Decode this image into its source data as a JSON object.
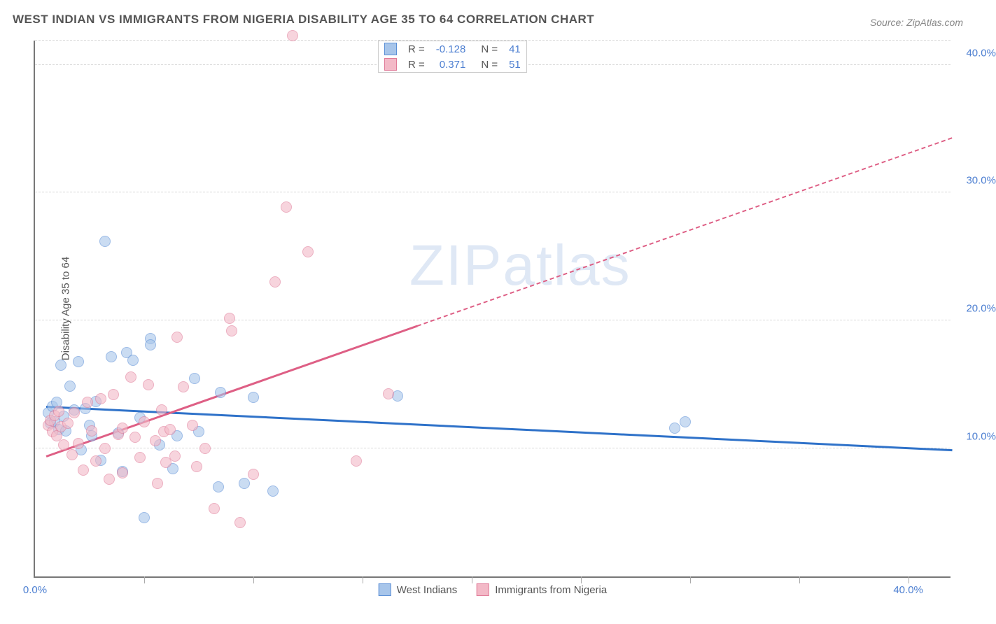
{
  "title": "WEST INDIAN VS IMMIGRANTS FROM NIGERIA DISABILITY AGE 35 TO 64 CORRELATION CHART",
  "source": "Source: ZipAtlas.com",
  "watermark": "ZIPatlas",
  "chart": {
    "type": "scatter",
    "xlim": [
      0,
      42
    ],
    "ylim": [
      0,
      42
    ],
    "ylabel": "Disability Age 35 to 64",
    "xtick_left": {
      "pos": 0.0,
      "label": "0.0%"
    },
    "xtick_right": {
      "pos": 40.0,
      "label": "40.0%"
    },
    "xtick_marks": [
      5,
      10,
      15,
      20,
      25,
      30,
      35,
      40
    ],
    "yticks": [
      {
        "pos": 10.0,
        "label": "10.0%"
      },
      {
        "pos": 20.0,
        "label": "20.0%"
      },
      {
        "pos": 30.0,
        "label": "30.0%"
      },
      {
        "pos": 40.0,
        "label": "40.0%"
      }
    ],
    "grid_color": "#d8d8d8",
    "background_color": "#ffffff",
    "marker_size": 16,
    "marker_opacity": 0.6,
    "series": [
      {
        "name": "West Indians",
        "fill": "#a7c5ea",
        "stroke": "#5b8fd6",
        "line_color": "#2f72c9",
        "R": "-0.128",
        "N": "41",
        "trend": {
          "x1": 0.5,
          "y1": 13.2,
          "x2": 42,
          "y2": 9.8
        },
        "points": [
          [
            0.6,
            12.8
          ],
          [
            0.7,
            12.0
          ],
          [
            0.8,
            13.3
          ],
          [
            0.9,
            12.1
          ],
          [
            1.0,
            13.6
          ],
          [
            1.1,
            11.5
          ],
          [
            1.2,
            16.5
          ],
          [
            1.3,
            12.5
          ],
          [
            1.4,
            11.4
          ],
          [
            1.6,
            14.9
          ],
          [
            1.8,
            13.0
          ],
          [
            2.0,
            16.8
          ],
          [
            2.1,
            9.9
          ],
          [
            2.3,
            13.1
          ],
          [
            2.5,
            11.8
          ],
          [
            2.6,
            11.0
          ],
          [
            2.8,
            13.7
          ],
          [
            3.0,
            9.1
          ],
          [
            3.2,
            26.2
          ],
          [
            3.5,
            17.2
          ],
          [
            3.8,
            11.2
          ],
          [
            4.0,
            8.2
          ],
          [
            4.2,
            17.5
          ],
          [
            4.5,
            16.9
          ],
          [
            4.8,
            12.4
          ],
          [
            5.0,
            4.6
          ],
          [
            5.3,
            18.6
          ],
          [
            5.3,
            18.1
          ],
          [
            5.7,
            10.3
          ],
          [
            6.3,
            8.4
          ],
          [
            6.5,
            11.0
          ],
          [
            7.3,
            15.5
          ],
          [
            7.5,
            11.3
          ],
          [
            8.4,
            7.0
          ],
          [
            8.5,
            14.4
          ],
          [
            9.6,
            7.3
          ],
          [
            10.0,
            14.0
          ],
          [
            10.9,
            6.7
          ],
          [
            16.6,
            14.1
          ],
          [
            29.3,
            11.6
          ],
          [
            29.8,
            12.1
          ]
        ]
      },
      {
        "name": "Immigrants from Nigeria",
        "fill": "#f3b9c7",
        "stroke": "#e07b98",
        "line_color": "#de5f85",
        "R": "0.371",
        "N": "51",
        "trend": {
          "x1": 0.5,
          "y1": 9.3,
          "x2": 42,
          "y2": 34.2
        },
        "trend_dash_after_x": 17.5,
        "points": [
          [
            0.6,
            11.8
          ],
          [
            0.7,
            12.2
          ],
          [
            0.8,
            11.3
          ],
          [
            0.9,
            12.6
          ],
          [
            1.0,
            11.0
          ],
          [
            1.1,
            12.9
          ],
          [
            1.2,
            11.7
          ],
          [
            1.3,
            10.3
          ],
          [
            1.5,
            12.0
          ],
          [
            1.7,
            9.5
          ],
          [
            1.8,
            12.8
          ],
          [
            2.0,
            10.4
          ],
          [
            2.2,
            8.3
          ],
          [
            2.4,
            13.6
          ],
          [
            2.6,
            11.4
          ],
          [
            2.8,
            9.0
          ],
          [
            3.0,
            13.9
          ],
          [
            3.2,
            10.0
          ],
          [
            3.4,
            7.6
          ],
          [
            3.6,
            14.2
          ],
          [
            3.8,
            11.1
          ],
          [
            4.0,
            8.1
          ],
          [
            4.0,
            11.6
          ],
          [
            4.4,
            15.6
          ],
          [
            4.6,
            10.9
          ],
          [
            4.8,
            9.3
          ],
          [
            5.0,
            12.1
          ],
          [
            5.2,
            15.0
          ],
          [
            5.5,
            10.6
          ],
          [
            5.6,
            7.3
          ],
          [
            5.8,
            13.0
          ],
          [
            5.9,
            11.3
          ],
          [
            6.0,
            8.9
          ],
          [
            6.2,
            11.5
          ],
          [
            6.4,
            9.4
          ],
          [
            6.5,
            18.7
          ],
          [
            6.8,
            14.8
          ],
          [
            7.2,
            11.8
          ],
          [
            7.4,
            8.6
          ],
          [
            7.8,
            10.0
          ],
          [
            8.2,
            5.3
          ],
          [
            8.9,
            20.2
          ],
          [
            9.0,
            19.2
          ],
          [
            9.4,
            4.2
          ],
          [
            10.0,
            8.0
          ],
          [
            11.0,
            23.0
          ],
          [
            11.5,
            28.9
          ],
          [
            11.8,
            42.3
          ],
          [
            12.5,
            25.4
          ],
          [
            14.7,
            9.0
          ],
          [
            16.2,
            14.3
          ]
        ]
      }
    ],
    "legend": {
      "items": [
        {
          "label": "West Indians",
          "fill": "#a7c5ea",
          "stroke": "#5b8fd6"
        },
        {
          "label": "Immigrants from Nigeria",
          "fill": "#f3b9c7",
          "stroke": "#e07b98"
        }
      ]
    }
  }
}
